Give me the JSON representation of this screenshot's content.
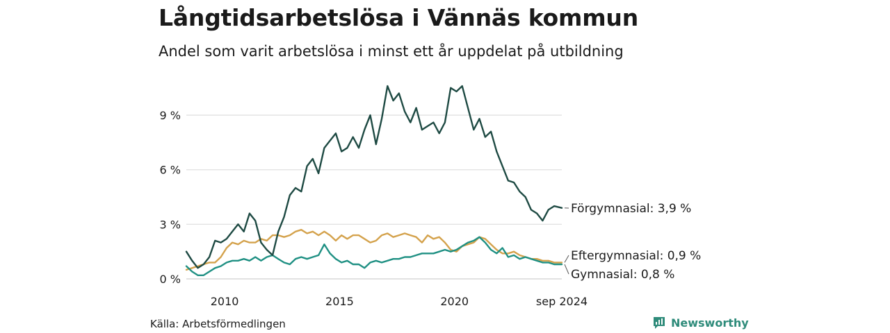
{
  "title": "Långtidsarbetslösa i Vännäs kommun",
  "subtitle": "Andel som varit arbetslösa i minst ett år uppdelat på utbildning",
  "source": "Källa: Arbetsförmedlingen",
  "brand": "Newsworthy",
  "chart_data": {
    "type": "line",
    "x_start": "2008-05",
    "x_end": "2024-09",
    "x_ticks": [
      "2010",
      "2015",
      "2020",
      "sep 2024"
    ],
    "y_ticks": [
      "0 %",
      "3 %",
      "6 %",
      "9 %"
    ],
    "ylim": [
      0,
      11
    ],
    "grid": true,
    "series": [
      {
        "name": "Förgymnasial",
        "label": "Förgymnasial: 3,9 %",
        "color": "#1e4a43",
        "points": [
          [
            "2008-05",
            1.5
          ],
          [
            "2008-08",
            1.0
          ],
          [
            "2008-11",
            0.6
          ],
          [
            "2009-02",
            0.8
          ],
          [
            "2009-05",
            1.2
          ],
          [
            "2009-08",
            2.1
          ],
          [
            "2009-11",
            2.0
          ],
          [
            "2010-02",
            2.2
          ],
          [
            "2010-05",
            2.6
          ],
          [
            "2010-08",
            3.0
          ],
          [
            "2010-11",
            2.6
          ],
          [
            "2011-02",
            3.6
          ],
          [
            "2011-05",
            3.2
          ],
          [
            "2011-08",
            2.0
          ],
          [
            "2011-11",
            1.6
          ],
          [
            "2012-02",
            1.3
          ],
          [
            "2012-05",
            2.6
          ],
          [
            "2012-08",
            3.4
          ],
          [
            "2012-11",
            4.6
          ],
          [
            "2013-02",
            5.0
          ],
          [
            "2013-05",
            4.8
          ],
          [
            "2013-08",
            6.2
          ],
          [
            "2013-11",
            6.6
          ],
          [
            "2014-02",
            5.8
          ],
          [
            "2014-05",
            7.2
          ],
          [
            "2014-08",
            7.6
          ],
          [
            "2014-11",
            8.0
          ],
          [
            "2015-02",
            7.0
          ],
          [
            "2015-05",
            7.2
          ],
          [
            "2015-08",
            7.8
          ],
          [
            "2015-11",
            7.2
          ],
          [
            "2016-02",
            8.2
          ],
          [
            "2016-05",
            9.0
          ],
          [
            "2016-08",
            7.4
          ],
          [
            "2016-11",
            8.8
          ],
          [
            "2017-02",
            10.6
          ],
          [
            "2017-05",
            9.8
          ],
          [
            "2017-08",
            10.2
          ],
          [
            "2017-11",
            9.2
          ],
          [
            "2018-02",
            8.6
          ],
          [
            "2018-05",
            9.4
          ],
          [
            "2018-08",
            8.2
          ],
          [
            "2018-11",
            8.4
          ],
          [
            "2019-02",
            8.6
          ],
          [
            "2019-05",
            8.0
          ],
          [
            "2019-08",
            8.6
          ],
          [
            "2019-11",
            10.5
          ],
          [
            "2020-02",
            10.3
          ],
          [
            "2020-05",
            10.6
          ],
          [
            "2020-08",
            9.4
          ],
          [
            "2020-11",
            8.2
          ],
          [
            "2021-02",
            8.8
          ],
          [
            "2021-05",
            7.8
          ],
          [
            "2021-08",
            8.1
          ],
          [
            "2021-11",
            7.0
          ],
          [
            "2022-02",
            6.2
          ],
          [
            "2022-05",
            5.4
          ],
          [
            "2022-08",
            5.3
          ],
          [
            "2022-11",
            4.8
          ],
          [
            "2023-02",
            4.5
          ],
          [
            "2023-05",
            3.8
          ],
          [
            "2023-08",
            3.6
          ],
          [
            "2023-11",
            3.2
          ],
          [
            "2024-02",
            3.8
          ],
          [
            "2024-05",
            4.0
          ],
          [
            "2024-09",
            3.9
          ]
        ]
      },
      {
        "name": "Eftergymnasial",
        "label": "Eftergymnasial: 0,9 %",
        "color": "#d4a24c",
        "points": [
          [
            "2008-05",
            0.5
          ],
          [
            "2008-08",
            0.6
          ],
          [
            "2008-11",
            0.7
          ],
          [
            "2009-02",
            0.8
          ],
          [
            "2009-05",
            0.9
          ],
          [
            "2009-08",
            0.9
          ],
          [
            "2009-11",
            1.2
          ],
          [
            "2010-02",
            1.7
          ],
          [
            "2010-05",
            2.0
          ],
          [
            "2010-08",
            1.9
          ],
          [
            "2010-11",
            2.1
          ],
          [
            "2011-02",
            2.0
          ],
          [
            "2011-05",
            2.0
          ],
          [
            "2011-08",
            2.2
          ],
          [
            "2011-11",
            2.1
          ],
          [
            "2012-02",
            2.4
          ],
          [
            "2012-05",
            2.4
          ],
          [
            "2012-08",
            2.3
          ],
          [
            "2012-11",
            2.4
          ],
          [
            "2013-02",
            2.6
          ],
          [
            "2013-05",
            2.7
          ],
          [
            "2013-08",
            2.5
          ],
          [
            "2013-11",
            2.6
          ],
          [
            "2014-02",
            2.4
          ],
          [
            "2014-05",
            2.6
          ],
          [
            "2014-08",
            2.4
          ],
          [
            "2014-11",
            2.1
          ],
          [
            "2015-02",
            2.4
          ],
          [
            "2015-05",
            2.2
          ],
          [
            "2015-08",
            2.4
          ],
          [
            "2015-11",
            2.4
          ],
          [
            "2016-02",
            2.2
          ],
          [
            "2016-05",
            2.0
          ],
          [
            "2016-08",
            2.1
          ],
          [
            "2016-11",
            2.4
          ],
          [
            "2017-02",
            2.5
          ],
          [
            "2017-05",
            2.3
          ],
          [
            "2017-08",
            2.4
          ],
          [
            "2017-11",
            2.5
          ],
          [
            "2018-02",
            2.4
          ],
          [
            "2018-05",
            2.3
          ],
          [
            "2018-08",
            2.0
          ],
          [
            "2018-11",
            2.4
          ],
          [
            "2019-02",
            2.2
          ],
          [
            "2019-05",
            2.3
          ],
          [
            "2019-08",
            2.0
          ],
          [
            "2019-11",
            1.6
          ],
          [
            "2020-02",
            1.5
          ],
          [
            "2020-05",
            1.8
          ],
          [
            "2020-08",
            1.9
          ],
          [
            "2020-11",
            2.0
          ],
          [
            "2021-02",
            2.3
          ],
          [
            "2021-05",
            2.2
          ],
          [
            "2021-08",
            1.9
          ],
          [
            "2021-11",
            1.6
          ],
          [
            "2022-02",
            1.4
          ],
          [
            "2022-05",
            1.4
          ],
          [
            "2022-08",
            1.5
          ],
          [
            "2022-11",
            1.3
          ],
          [
            "2023-02",
            1.2
          ],
          [
            "2023-05",
            1.1
          ],
          [
            "2023-08",
            1.1
          ],
          [
            "2023-11",
            1.0
          ],
          [
            "2024-02",
            1.0
          ],
          [
            "2024-05",
            0.9
          ],
          [
            "2024-09",
            0.9
          ]
        ]
      },
      {
        "name": "Gymnasial",
        "label": "Gymnasial: 0,8 %",
        "color": "#1f9083",
        "points": [
          [
            "2008-05",
            0.7
          ],
          [
            "2008-08",
            0.4
          ],
          [
            "2008-11",
            0.2
          ],
          [
            "2009-02",
            0.2
          ],
          [
            "2009-05",
            0.4
          ],
          [
            "2009-08",
            0.6
          ],
          [
            "2009-11",
            0.7
          ],
          [
            "2010-02",
            0.9
          ],
          [
            "2010-05",
            1.0
          ],
          [
            "2010-08",
            1.0
          ],
          [
            "2010-11",
            1.1
          ],
          [
            "2011-02",
            1.0
          ],
          [
            "2011-05",
            1.2
          ],
          [
            "2011-08",
            1.0
          ],
          [
            "2011-11",
            1.2
          ],
          [
            "2012-02",
            1.3
          ],
          [
            "2012-05",
            1.1
          ],
          [
            "2012-08",
            0.9
          ],
          [
            "2012-11",
            0.8
          ],
          [
            "2013-02",
            1.1
          ],
          [
            "2013-05",
            1.2
          ],
          [
            "2013-08",
            1.1
          ],
          [
            "2013-11",
            1.2
          ],
          [
            "2014-02",
            1.3
          ],
          [
            "2014-05",
            1.9
          ],
          [
            "2014-08",
            1.4
          ],
          [
            "2014-11",
            1.1
          ],
          [
            "2015-02",
            0.9
          ],
          [
            "2015-05",
            1.0
          ],
          [
            "2015-08",
            0.8
          ],
          [
            "2015-11",
            0.8
          ],
          [
            "2016-02",
            0.6
          ],
          [
            "2016-05",
            0.9
          ],
          [
            "2016-08",
            1.0
          ],
          [
            "2016-11",
            0.9
          ],
          [
            "2017-02",
            1.0
          ],
          [
            "2017-05",
            1.1
          ],
          [
            "2017-08",
            1.1
          ],
          [
            "2017-11",
            1.2
          ],
          [
            "2018-02",
            1.2
          ],
          [
            "2018-05",
            1.3
          ],
          [
            "2018-08",
            1.4
          ],
          [
            "2018-11",
            1.4
          ],
          [
            "2019-02",
            1.4
          ],
          [
            "2019-05",
            1.5
          ],
          [
            "2019-08",
            1.6
          ],
          [
            "2019-11",
            1.5
          ],
          [
            "2020-02",
            1.6
          ],
          [
            "2020-05",
            1.8
          ],
          [
            "2020-08",
            2.0
          ],
          [
            "2020-11",
            2.1
          ],
          [
            "2021-02",
            2.3
          ],
          [
            "2021-05",
            2.0
          ],
          [
            "2021-08",
            1.6
          ],
          [
            "2021-11",
            1.4
          ],
          [
            "2022-02",
            1.7
          ],
          [
            "2022-05",
            1.2
          ],
          [
            "2022-08",
            1.3
          ],
          [
            "2022-11",
            1.1
          ],
          [
            "2023-02",
            1.2
          ],
          [
            "2023-05",
            1.1
          ],
          [
            "2023-08",
            1.0
          ],
          [
            "2023-11",
            0.9
          ],
          [
            "2024-02",
            0.9
          ],
          [
            "2024-05",
            0.8
          ],
          [
            "2024-09",
            0.8
          ]
        ]
      }
    ]
  }
}
